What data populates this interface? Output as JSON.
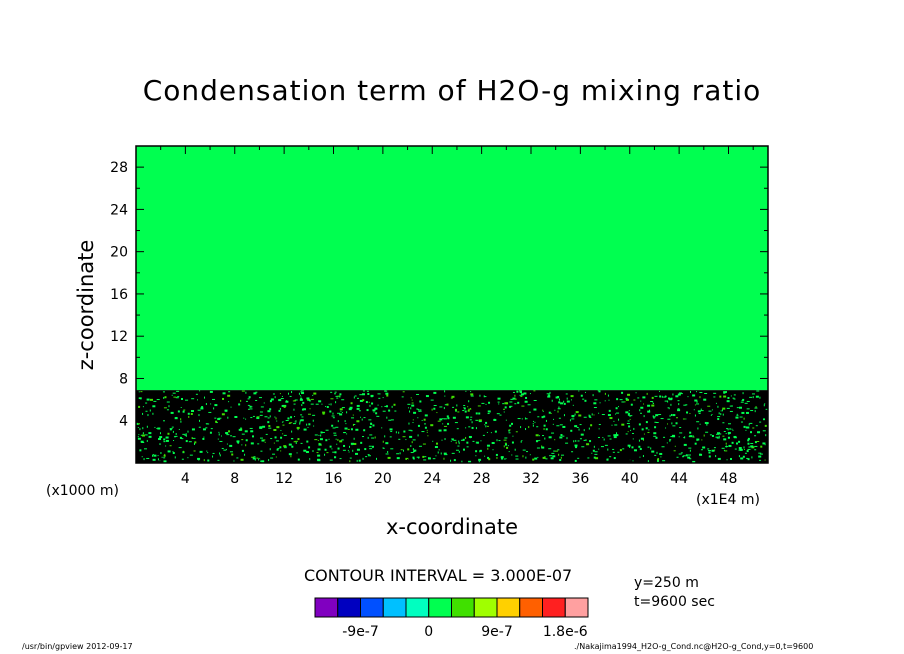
{
  "chart_data": {
    "type": "heatmap",
    "title": "Condensation term of H2O-g mixing ratio",
    "xlabel": "x-coordinate",
    "ylabel": "z-coordinate",
    "x_scale_label": "(x1000 m)",
    "x_unit_label": "(x1E4 m)",
    "xlim": [
      0,
      51.2
    ],
    "ylim": [
      0,
      30
    ],
    "x_ticks": [
      4,
      8,
      12,
      16,
      20,
      24,
      28,
      32,
      36,
      40,
      44,
      48
    ],
    "y_ticks": [
      4,
      8,
      12,
      16,
      20,
      24,
      28
    ],
    "regions": [
      {
        "z_range": [
          0,
          6.9
        ],
        "level": "below -9e-7",
        "color": "#000000"
      },
      {
        "z_range": [
          6.9,
          30
        ],
        "level": "0",
        "color": "#00ff50"
      }
    ],
    "contour_interval": "CONTOUR INTERVAL = 3.000E-07",
    "colorbar": {
      "colors": [
        "#8000c0",
        "#0000c0",
        "#0050ff",
        "#00c0ff",
        "#00ffc0",
        "#00ff50",
        "#40e000",
        "#a0ff00",
        "#ffd000",
        "#ff6000",
        "#ff2020",
        "#ffa0a0"
      ],
      "labels": [
        "-9e-7",
        "0",
        "9e-7",
        "1.8e-6"
      ]
    },
    "annotations": {
      "y_level": "y=250 m",
      "time": "t=9600 sec"
    }
  },
  "footer": {
    "left": "/usr/bin/gpview  2012-09-17",
    "right": "./Nakajima1994_H2O-g_Cond.nc@H2O-g_Cond,y=0,t=9600"
  },
  "colors": {
    "axis": "#000000",
    "background": "#ffffff"
  }
}
